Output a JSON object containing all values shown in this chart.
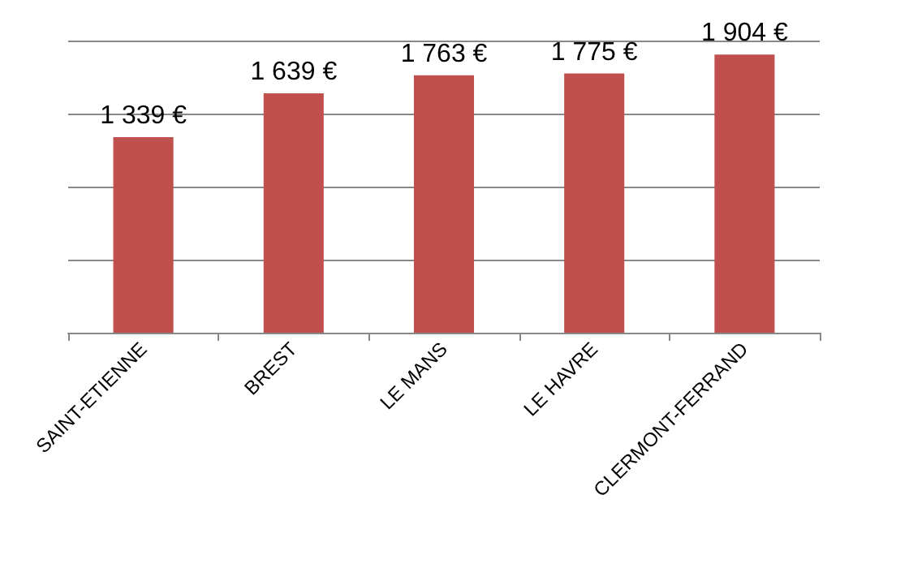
{
  "chart_data": {
    "type": "bar",
    "categories": [
      "SAINT-ETIENNE",
      "BREST",
      "LE MANS",
      "LE HAVRE",
      "CLERMONT-FERRAND"
    ],
    "values": [
      1339,
      1639,
      1763,
      1775,
      1904
    ],
    "value_labels": [
      "1 339 €",
      "1 639 €",
      "1 763 €",
      "1 775 €",
      "1 904 €"
    ],
    "color": "#c0504d",
    "ylim": [
      0,
      2000
    ],
    "yticks": [
      {
        "value": 0,
        "label": null
      },
      {
        "value": 500,
        "label": null
      },
      {
        "value": 1000,
        "label": null
      },
      {
        "value": 1500,
        "label": null
      },
      {
        "value": 2000,
        "label": null
      }
    ],
    "grid": "y",
    "tick_labels": "x"
  }
}
